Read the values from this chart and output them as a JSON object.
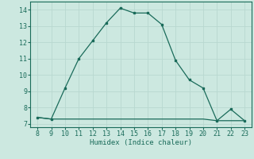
{
  "x": [
    8,
    9,
    10,
    11,
    12,
    13,
    14,
    15,
    16,
    17,
    18,
    19,
    20,
    21,
    22,
    23
  ],
  "y_main": [
    7.4,
    7.3,
    9.2,
    11.0,
    12.1,
    13.2,
    14.1,
    13.8,
    13.8,
    13.1,
    10.9,
    9.7,
    9.2,
    7.2,
    7.9,
    7.2
  ],
  "y_flat": [
    7.4,
    7.3,
    7.3,
    7.3,
    7.3,
    7.3,
    7.3,
    7.3,
    7.3,
    7.3,
    7.3,
    7.3,
    7.3,
    7.2,
    7.2,
    7.2
  ],
  "line_color": "#1a6b5a",
  "bg_color": "#cce8e0",
  "grid_color": "#b8d8d0",
  "xlabel": "Humidex (Indice chaleur)",
  "xlim": [
    7.5,
    23.5
  ],
  "ylim": [
    6.8,
    14.5
  ],
  "xticks": [
    8,
    9,
    10,
    11,
    12,
    13,
    14,
    15,
    16,
    17,
    18,
    19,
    20,
    21,
    22,
    23
  ],
  "yticks": [
    7,
    8,
    9,
    10,
    11,
    12,
    13,
    14
  ],
  "label_fontsize": 6.5,
  "tick_fontsize": 6.0
}
